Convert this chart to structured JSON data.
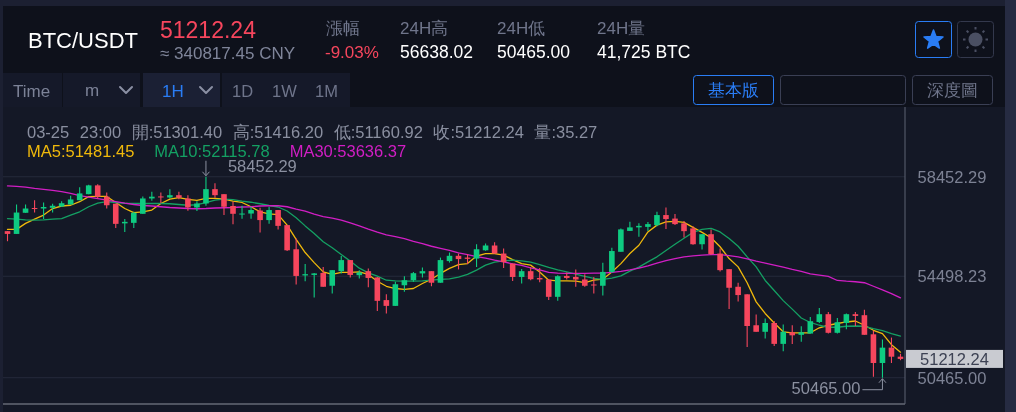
{
  "chart_data": {
    "type": "candlestick",
    "title": "BTC/USDT",
    "subtitle": "03-25 23:00 開:51301.40 高:51416.20 低:51160.92 收:51212.24 量:35.27",
    "annotations": [
      "51212.24",
      "≈ 340817.45 CNY",
      "漲幅",
      "-9.03%",
      "24H高",
      "56638.02",
      "24H低",
      "50465.00",
      "24H量",
      "41,725 BTC",
      "Time",
      "m",
      "1H",
      "1D",
      "1W",
      "1M",
      "基本版",
      "深度圖",
      "58452.29",
      "50465.00",
      "51212.24"
    ],
    "categories": [
      null,
      null,
      null,
      null,
      null,
      null,
      null,
      null,
      null,
      null,
      null,
      null,
      null,
      null,
      null,
      null,
      null,
      null,
      null,
      null,
      null,
      null,
      null,
      null,
      null,
      null,
      null,
      null,
      null,
      null,
      null,
      null,
      null,
      null,
      null,
      null,
      null,
      null,
      null,
      null,
      null,
      null,
      null,
      null,
      null,
      null,
      null,
      null,
      null,
      null,
      null,
      null,
      null,
      null,
      null,
      null,
      null,
      null,
      null,
      null,
      null,
      null,
      null,
      null,
      null,
      null,
      null,
      null,
      null,
      null,
      null,
      null,
      null,
      null,
      null,
      null,
      null,
      null,
      null,
      null,
      null,
      null,
      null,
      null,
      null,
      null,
      null,
      null,
      null,
      null,
      null,
      null,
      null,
      null,
      null,
      null,
      null,
      null,
      null,
      null
    ],
    "ohlc": [
      [
        56290,
        56290,
        55890,
        56180
      ],
      [
        56180,
        57350,
        56180,
        57030
      ],
      [
        57020,
        57350,
        57020,
        57190
      ],
      [
        57210,
        57520,
        57030,
        57180
      ],
      [
        57190,
        57430,
        56770,
        57250
      ],
      [
        57220,
        57380,
        57030,
        57300
      ],
      [
        57270,
        57480,
        57250,
        57400
      ],
      [
        57350,
        57700,
        57350,
        57550
      ],
      [
        57520,
        58040,
        57520,
        57790
      ],
      [
        57760,
        58130,
        57760,
        58110
      ],
      [
        58110,
        58150,
        57590,
        57660
      ],
      [
        57660,
        57830,
        57190,
        57320
      ],
      [
        57380,
        57380,
        56420,
        56580
      ],
      [
        56600,
        56770,
        56260,
        56660
      ],
      [
        56620,
        57060,
        56420,
        57020
      ],
      [
        56980,
        57670,
        56980,
        57590
      ],
      [
        57590,
        57860,
        57500,
        57660
      ],
      [
        57670,
        57830,
        57400,
        57630
      ],
      [
        57630,
        57960,
        57590,
        57720
      ],
      [
        57720,
        57860,
        57560,
        57620
      ],
      [
        57590,
        57720,
        57100,
        57230
      ],
      [
        57230,
        57480,
        57090,
        57390
      ],
      [
        57390,
        58452.29,
        57300,
        57960
      ],
      [
        57960,
        58190,
        57620,
        57720
      ],
      [
        57760,
        57760,
        56930,
        57260
      ],
      [
        57290,
        57460,
        56560,
        56980
      ],
      [
        56970,
        57300,
        56780,
        56990
      ],
      [
        56990,
        57260,
        56780,
        57130
      ],
      [
        57110,
        57220,
        56240,
        56730
      ],
      [
        56730,
        57250,
        56580,
        57130
      ],
      [
        57130,
        57130,
        56360,
        56500
      ],
      [
        56530,
        56530,
        55500,
        55530
      ],
      [
        55570,
        56000,
        54170,
        54510
      ],
      [
        54530,
        54980,
        54300,
        54580
      ],
      [
        54550,
        54630,
        53650,
        54610
      ],
      [
        54630,
        54870,
        54080,
        54080
      ],
      [
        54120,
        54740,
        53810,
        54740
      ],
      [
        54700,
        55300,
        54610,
        55140
      ],
      [
        55140,
        55140,
        54450,
        54550
      ],
      [
        54540,
        54740,
        54410,
        54650
      ],
      [
        54700,
        54810,
        54060,
        54430
      ],
      [
        54450,
        54470,
        53120,
        53520
      ],
      [
        53550,
        53780,
        53020,
        53320
      ],
      [
        53320,
        54280,
        53320,
        54180
      ],
      [
        54140,
        54500,
        53880,
        54340
      ],
      [
        54340,
        54670,
        54280,
        54620
      ],
      [
        54610,
        54850,
        54450,
        54700
      ],
      [
        54700,
        54700,
        54100,
        54240
      ],
      [
        54240,
        55240,
        54240,
        55140
      ],
      [
        55100,
        55440,
        55040,
        55310
      ],
      [
        55310,
        55400,
        54770,
        55180
      ],
      [
        55240,
        55380,
        54980,
        55190
      ],
      [
        55200,
        55770,
        54870,
        55570
      ],
      [
        55530,
        55800,
        55510,
        55720
      ],
      [
        55720,
        55850,
        55400,
        55400
      ],
      [
        55400,
        55600,
        54830,
        55060
      ],
      [
        55000,
        55000,
        54310,
        54470
      ],
      [
        54470,
        54790,
        54210,
        54700
      ],
      [
        54700,
        54870,
        54340,
        54380
      ],
      [
        54430,
        54830,
        54260,
        54370
      ],
      [
        54370,
        54370,
        53550,
        53680
      ],
      [
        53680,
        54540,
        53520,
        54500
      ],
      [
        54510,
        54650,
        54370,
        54430
      ],
      [
        54470,
        54770,
        54080,
        54370
      ],
      [
        54370,
        54580,
        54080,
        54120
      ],
      [
        54170,
        54470,
        53810,
        54130
      ],
      [
        54120,
        55030,
        53730,
        54670
      ],
      [
        54670,
        55630,
        54630,
        55500
      ],
      [
        55470,
        56400,
        55470,
        56360
      ],
      [
        56300,
        56660,
        56300,
        56440
      ],
      [
        56440,
        56600,
        56070,
        56500
      ],
      [
        56460,
        56650,
        56300,
        56570
      ],
      [
        56530,
        57060,
        56490,
        56930
      ],
      [
        56930,
        57230,
        56380,
        56770
      ],
      [
        56790,
        56970,
        56530,
        56570
      ],
      [
        56600,
        56690,
        56040,
        56290
      ],
      [
        56400,
        56490,
        55750,
        55770
      ],
      [
        55770,
        56170,
        55560,
        56170
      ],
      [
        56170,
        56360,
        55340,
        55380
      ],
      [
        55400,
        55600,
        54690,
        54740
      ],
      [
        54780,
        54780,
        53200,
        54040
      ],
      [
        54080,
        54240,
        53490,
        53750
      ],
      [
        53780,
        53780,
        51690,
        52520
      ],
      [
        52550,
        52980,
        52290,
        52290
      ],
      [
        52290,
        52820,
        52020,
        52640
      ],
      [
        52640,
        52720,
        51730,
        51810
      ],
      [
        51810,
        52580,
        51520,
        52290
      ],
      [
        52270,
        52550,
        51800,
        52150
      ],
      [
        52170,
        52510,
        51890,
        52270
      ],
      [
        52220,
        52880,
        52220,
        52710
      ],
      [
        52680,
        53240,
        52640,
        52990
      ],
      [
        52990,
        53080,
        52220,
        52250
      ],
      [
        52250,
        52840,
        52220,
        52670
      ],
      [
        52640,
        53020,
        52390,
        52990
      ],
      [
        52990,
        53080,
        52520,
        52920
      ],
      [
        52950,
        53170,
        52170,
        52170
      ],
      [
        52190,
        52330,
        50500,
        51050
      ],
      [
        51050,
        51980,
        50465.0,
        51660
      ],
      [
        51660,
        52060,
        51050,
        51300
      ],
      [
        51301.4,
        51416.2,
        51160.92,
        51212.24
      ]
    ],
    "colors": [
      "#f6465d",
      "#0ecb81",
      "#0ecb81",
      "#f6465d",
      "#0ecb81",
      "#0ecb81",
      "#0ecb81",
      "#0ecb81",
      "#0ecb81",
      "#0ecb81",
      "#f6465d",
      "#f6465d",
      "#f6465d",
      "#0ecb81",
      "#0ecb81",
      "#0ecb81",
      "#0ecb81",
      "#f6465d",
      "#0ecb81",
      "#f6465d",
      "#f6465d",
      "#0ecb81",
      "#0ecb81",
      "#f6465d",
      "#f6465d",
      "#f6465d",
      "#0ecb81",
      "#0ecb81",
      "#f6465d",
      "#0ecb81",
      "#f6465d",
      "#f6465d",
      "#f6465d",
      "#0ecb81",
      "#0ecb81",
      "#f6465d",
      "#0ecb81",
      "#0ecb81",
      "#f6465d",
      "#0ecb81",
      "#f6465d",
      "#f6465d",
      "#f6465d",
      "#0ecb81",
      "#0ecb81",
      "#0ecb81",
      "#0ecb81",
      "#f6465d",
      "#0ecb81",
      "#0ecb81",
      "#f6465d",
      "#f6465d",
      "#0ecb81",
      "#0ecb81",
      "#f6465d",
      "#f6465d",
      "#f6465d",
      "#0ecb81",
      "#f6465d",
      "#f6465d",
      "#f6465d",
      "#0ecb81",
      "#f6465d",
      "#f6465d",
      "#f6465d",
      "#f6465d",
      "#0ecb81",
      "#0ecb81",
      "#0ecb81",
      "#0ecb81",
      "#0ecb81",
      "#0ecb81",
      "#0ecb81",
      "#f6465d",
      "#f6465d",
      "#f6465d",
      "#f6465d",
      "#0ecb81",
      "#f6465d",
      "#f6465d",
      "#f6465d",
      "#f6465d",
      "#f6465d",
      "#f6465d",
      "#0ecb81",
      "#f6465d",
      "#0ecb81",
      "#f6465d",
      "#0ecb81",
      "#0ecb81",
      "#0ecb81",
      "#f6465d",
      "#0ecb81",
      "#0ecb81",
      "#f6465d",
      "#f6465d",
      "#f6465d",
      "#0ecb81",
      "#f6465d",
      "#f6465d"
    ],
    "series": [
      {
        "name": "MA5:51481.45",
        "type": "line",
        "color": "#f0b90b",
        "values": [
          56360,
          56360,
          56600,
          56770,
          56930,
          57190,
          57290,
          57320,
          57460,
          57660,
          57670,
          57670,
          57430,
          57190,
          57030,
          57060,
          57130,
          57390,
          57560,
          57620,
          57550,
          57510,
          57590,
          57590,
          57560,
          57480,
          57430,
          57260,
          57060,
          56980,
          56950,
          56530,
          55960,
          55440,
          55040,
          54670,
          54570,
          54650,
          54650,
          54670,
          54570,
          54300,
          54100,
          54010,
          53980,
          54010,
          54210,
          54380,
          54610,
          54810,
          54960,
          55000,
          55300,
          55400,
          55400,
          55340,
          55160,
          55000,
          54940,
          54670,
          54340,
          54310,
          54310,
          54300,
          54240,
          54340,
          54380,
          54670,
          55000,
          55400,
          55730,
          56260,
          56530,
          56660,
          56680,
          56640,
          56440,
          56240,
          56030,
          55670,
          55200,
          54870,
          54240,
          53480,
          53020,
          52640,
          52290,
          52250,
          52250,
          52250,
          52450,
          52550,
          52620,
          52680,
          52720,
          52550,
          52350,
          52220,
          51780,
          51480
        ]
      },
      {
        "name": "MA10:52115.78",
        "type": "line",
        "color": "#14a063",
        "values": [
          56790,
          56770,
          56740,
          56730,
          56740,
          56770,
          56790,
          56930,
          57060,
          57260,
          57400,
          57460,
          57430,
          57400,
          57390,
          57390,
          57390,
          57390,
          57380,
          57350,
          57320,
          57340,
          57420,
          57520,
          57560,
          57540,
          57480,
          57440,
          57380,
          57310,
          57250,
          57090,
          56820,
          56500,
          56200,
          55870,
          55630,
          55360,
          55100,
          54820,
          54630,
          54500,
          54340,
          54310,
          54300,
          54300,
          54310,
          54340,
          54370,
          54390,
          54460,
          54570,
          54740,
          54940,
          55060,
          55110,
          55140,
          55110,
          55060,
          54960,
          54850,
          54750,
          54670,
          54580,
          54490,
          54410,
          54370,
          54420,
          54510,
          54700,
          54860,
          55070,
          55270,
          55520,
          55770,
          56010,
          56240,
          56360,
          56400,
          56260,
          56000,
          55690,
          55270,
          54870,
          54330,
          53930,
          53530,
          53190,
          52840,
          52660,
          52550,
          52470,
          52470,
          52510,
          52520,
          52510,
          52420,
          52340,
          52220,
          52120
        ]
      },
      {
        "name": "MA30:53636.37",
        "type": "line",
        "color": "#d11ec4",
        "values": [
          58090,
          58070,
          58040,
          57990,
          57950,
          57910,
          57860,
          57790,
          57700,
          57640,
          57580,
          57520,
          57460,
          57400,
          57350,
          57310,
          57290,
          57260,
          57230,
          57210,
          57190,
          57180,
          57190,
          57210,
          57220,
          57230,
          57250,
          57260,
          57290,
          57300,
          57300,
          57260,
          57170,
          57090,
          56970,
          56870,
          56810,
          56730,
          56620,
          56500,
          56370,
          56250,
          56140,
          56070,
          55990,
          55880,
          55790,
          55690,
          55610,
          55530,
          55430,
          55360,
          55280,
          55220,
          55140,
          55070,
          54990,
          54930,
          54830,
          54750,
          54650,
          54620,
          54610,
          54610,
          54610,
          54620,
          54620,
          54650,
          54690,
          54750,
          54820,
          54910,
          55020,
          55120,
          55200,
          55270,
          55310,
          55340,
          55360,
          55360,
          55320,
          55270,
          55190,
          55100,
          55020,
          54940,
          54860,
          54770,
          54690,
          54590,
          54540,
          54490,
          54330,
          54300,
          54280,
          54240,
          54100,
          53960,
          53810,
          53640
        ]
      }
    ],
    "ylim": [
      49420,
      61225
    ],
    "yticks": [
      58452.29,
      54498.23,
      {
        "value": 50465.0,
        "label": "50465.00"
      }
    ],
    "grid": "y",
    "legend": "top left",
    "tick_labels": "y"
  }
}
